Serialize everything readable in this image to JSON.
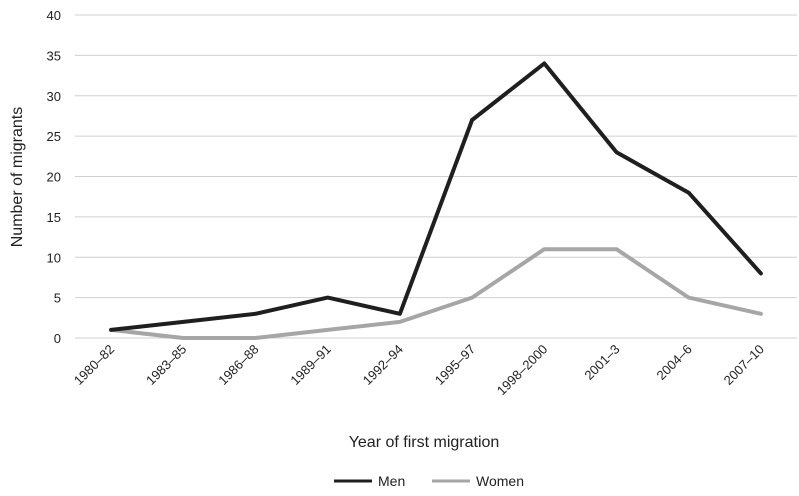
{
  "chart_data": {
    "type": "line",
    "title": "",
    "xlabel": "Year of first migration",
    "ylabel": "Number of migrants",
    "categories": [
      "1980–82",
      "1983–85",
      "1986–88",
      "1989–91",
      "1992–94",
      "1995–97",
      "1998–2000",
      "2001–3",
      "2004–6",
      "2007–10"
    ],
    "ylim": [
      0,
      40
    ],
    "yticks": [
      0,
      5,
      10,
      15,
      20,
      25,
      30,
      35,
      40
    ],
    "grid": true,
    "legend_position": "bottom",
    "series": [
      {
        "name": "Men",
        "color": "#1f1f1f",
        "values": [
          1,
          2,
          3,
          5,
          3,
          27,
          34,
          23,
          18,
          8
        ]
      },
      {
        "name": "Women",
        "color": "#a6a6a6",
        "values": [
          1,
          0,
          0,
          1,
          2,
          5,
          11,
          11,
          5,
          3
        ]
      }
    ]
  }
}
